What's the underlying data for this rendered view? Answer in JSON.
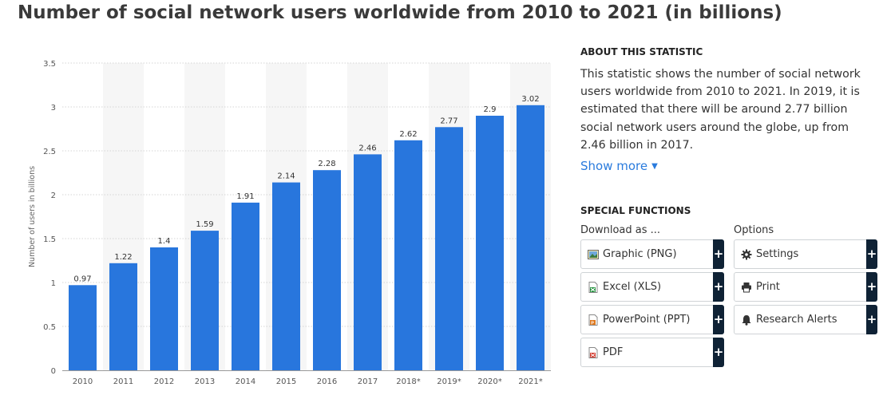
{
  "page": {
    "title": "Number of social network users worldwide from 2010 to 2021 (in billions)"
  },
  "about": {
    "heading": "ABOUT THIS STATISTIC",
    "text": "This statistic shows the number of social network users worldwide from 2010 to 2021. In 2019, it is estimated that there will be around 2.77 billion social network users around the globe, up from 2.46 billion in 2017.",
    "show_more_label": "Show more"
  },
  "special_functions": {
    "heading": "SPECIAL FUNCTIONS",
    "download_label": "Download as ...",
    "options_label": "Options",
    "downloads": [
      {
        "label": "Graphic (PNG)",
        "icon": "image-icon"
      },
      {
        "label": "Excel (XLS)",
        "icon": "excel-icon"
      },
      {
        "label": "PowerPoint (PPT)",
        "icon": "powerpoint-icon"
      },
      {
        "label": "PDF",
        "icon": "pdf-icon"
      }
    ],
    "options": [
      {
        "label": "Settings",
        "icon": "gear-icon"
      },
      {
        "label": "Print",
        "icon": "printer-icon"
      },
      {
        "label": "Research Alerts",
        "icon": "bell-icon"
      }
    ],
    "plus_symbol": "+"
  },
  "colors": {
    "bar": "#2876dd",
    "plus_button": "#0f2235",
    "link": "#2a7bdd"
  },
  "chart_data": {
    "type": "bar",
    "categories": [
      "2010",
      "2011",
      "2012",
      "2013",
      "2014",
      "2015",
      "2016",
      "2017",
      "2018*",
      "2019*",
      "2020*",
      "2021*"
    ],
    "values": [
      0.97,
      1.22,
      1.4,
      1.59,
      1.91,
      2.14,
      2.28,
      2.46,
      2.62,
      2.77,
      2.9,
      3.02
    ],
    "value_labels": [
      "0.97",
      "1.22",
      "1.4",
      "1.59",
      "1.91",
      "2.14",
      "2.28",
      "2.46",
      "2.62",
      "2.77",
      "2.9",
      "3.02"
    ],
    "ylabel": "Number of users in billions",
    "xlabel": "",
    "ylim": [
      0,
      3.5
    ],
    "yticks": [
      0,
      0.5,
      1,
      1.5,
      2,
      2.5,
      3,
      3.5
    ],
    "ytick_labels": [
      "0",
      "0.5",
      "1",
      "1.5",
      "2",
      "2.5",
      "3",
      "3.5"
    ],
    "grid": true,
    "alternating_column_shading": true
  }
}
